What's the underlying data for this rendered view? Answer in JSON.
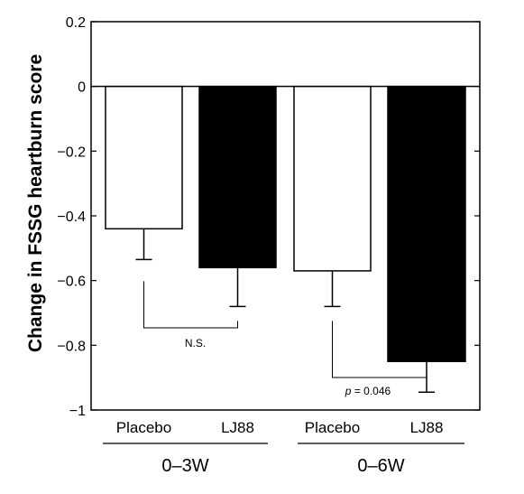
{
  "chart_data": {
    "type": "bar",
    "title": "",
    "ylabel": "Change in FSSG heartburn score",
    "ylim": [
      -1,
      0.2
    ],
    "yticks": [
      0.2,
      0,
      -0.2,
      -0.4,
      -0.6,
      -0.8,
      -1
    ],
    "ytick_labels": [
      "0.2",
      "0",
      "−0.2",
      "−0.4",
      "−0.6",
      "−0.8",
      "−1"
    ],
    "grid": false,
    "legend": "none",
    "groups": [
      "0–3W",
      "0–6W"
    ],
    "bars": [
      {
        "group": "0–3W",
        "label": "Placebo",
        "value": -0.44,
        "error": 0.095,
        "color": "#ffffff"
      },
      {
        "group": "0–3W",
        "label": "LJ88",
        "value": -0.56,
        "error": 0.12,
        "color": "#000000"
      },
      {
        "group": "0–6W",
        "label": "Placebo",
        "value": -0.57,
        "error": 0.11,
        "color": "#ffffff"
      },
      {
        "group": "0–6W",
        "label": "LJ88",
        "value": -0.85,
        "error": 0.095,
        "color": "#000000"
      }
    ],
    "annotations": [
      {
        "group": "0–3W",
        "prefix": "",
        "text": "N.S."
      },
      {
        "group": "0–6W",
        "prefix": "p",
        "text": " = 0.046"
      }
    ]
  }
}
